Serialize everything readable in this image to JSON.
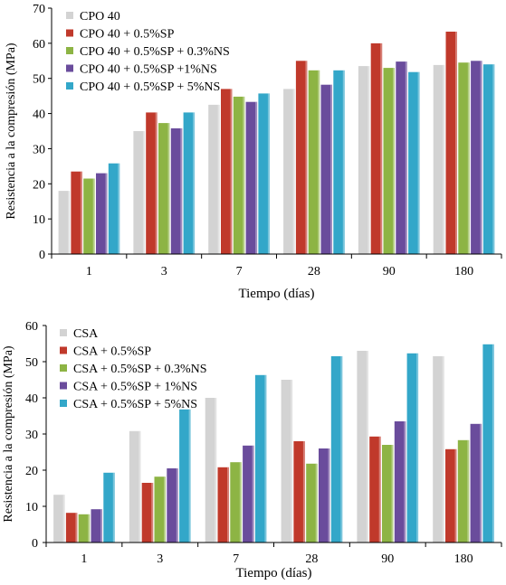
{
  "chart_data": [
    {
      "type": "bar",
      "ylabel": "Resistencia a la compresión (MPa)",
      "xlabel": "Tiempo (días)",
      "ylim": [
        0,
        70
      ],
      "yticks": [
        0,
        10,
        20,
        30,
        40,
        50,
        60,
        70
      ],
      "categories": [
        "1",
        "3",
        "7",
        "28",
        "90",
        "180"
      ],
      "legend_position": "top-left",
      "grid": false,
      "series": [
        {
          "name": "CPO 40",
          "color": "#d3d3d3",
          "values": [
            18,
            35,
            42.5,
            47,
            53.5,
            53.8
          ]
        },
        {
          "name": "CPO 40 + 0.5%SP",
          "color": "#c0392b",
          "values": [
            23.5,
            40.3,
            47,
            55,
            60,
            63.3
          ]
        },
        {
          "name": "CPO 40 + 0.5%SP + 0.3%NS",
          "color": "#8db444",
          "values": [
            21.5,
            37.3,
            44.8,
            52.3,
            53,
            54.5
          ]
        },
        {
          "name": "CPO 40 + 0.5%SP +1%NS",
          "color": "#6a4c9c",
          "values": [
            23,
            35.8,
            43.3,
            48.2,
            54.8,
            55
          ]
        },
        {
          "name": "CPO 40 + 0.5%SP + 5%NS",
          "color": "#33a7c9",
          "values": [
            25.8,
            40.3,
            45.7,
            52.3,
            51.8,
            54
          ]
        }
      ]
    },
    {
      "type": "bar",
      "ylabel": "Resistencia a la compresión (MPa)",
      "xlabel": "Tiempo (días)",
      "ylim": [
        0,
        60
      ],
      "yticks": [
        0,
        10,
        20,
        30,
        40,
        50,
        60
      ],
      "categories": [
        "1",
        "3",
        "7",
        "28",
        "90",
        "180"
      ],
      "legend_position": "top-left",
      "grid": false,
      "series": [
        {
          "name": "CSA",
          "color": "#d3d3d3",
          "values": [
            13.2,
            30.8,
            40,
            45,
            53,
            51.5
          ]
        },
        {
          "name": "CSA + 0.5%SP",
          "color": "#c0392b",
          "values": [
            8.2,
            16.5,
            20.8,
            28,
            29.3,
            25.8
          ]
        },
        {
          "name": "CSA + 0.5%SP + 0.3%NS",
          "color": "#8db444",
          "values": [
            7.8,
            18.2,
            22.2,
            21.8,
            27,
            28.3
          ]
        },
        {
          "name": "CSA + 0.5%SP + 1%NS",
          "color": "#6a4c9c",
          "values": [
            9.2,
            20.5,
            26.8,
            26,
            33.5,
            32.8
          ]
        },
        {
          "name": "CSA + 0.5%SP + 5%NS",
          "color": "#33a7c9",
          "values": [
            19.3,
            36.8,
            46.3,
            51.5,
            52.3,
            54.8
          ]
        }
      ]
    }
  ]
}
